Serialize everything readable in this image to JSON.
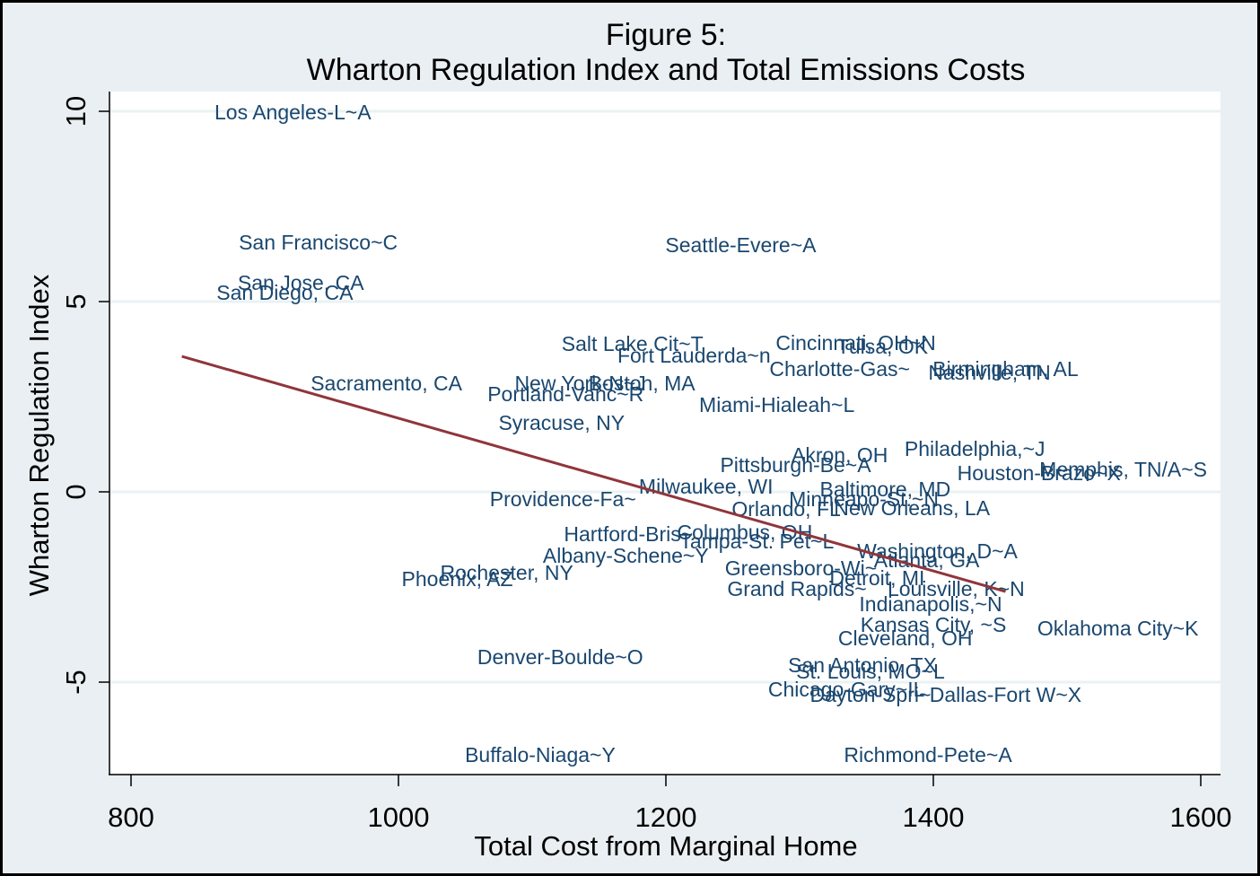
{
  "chart_data": {
    "type": "scatter",
    "title": "Figure 5:",
    "subtitle": "Wharton Regulation Index and Total Emissions Costs",
    "xlabel": "Total Cost from Marginal Home",
    "ylabel": "Wharton Regulation Index",
    "xlim": [
      784,
      1615
    ],
    "ylim": [
      -7.4,
      10.5
    ],
    "xticks": [
      800,
      1000,
      1200,
      1400,
      1600
    ],
    "xtick_labels": [
      "800",
      "1000",
      "1200",
      "1400",
      "1600"
    ],
    "yticks": [
      10,
      5,
      0,
      -5
    ],
    "ytick_labels": [
      "10",
      "5",
      "0",
      "-5"
    ],
    "grid": "horizontal",
    "legend": "none",
    "marker": "label-only",
    "label_color": "#1a476f",
    "fit_line": {
      "type": "linear",
      "color": "#90353b",
      "x": [
        838,
        1454
      ],
      "y": [
        3.56,
        -2.62
      ]
    },
    "points": [
      {
        "label": "Los Angeles-L~A",
        "x": 921,
        "y": 9.98
      },
      {
        "label": "San Francisco~C",
        "x": 940,
        "y": 6.56
      },
      {
        "label": "San Jose, CA",
        "x": 927,
        "y": 5.5
      },
      {
        "label": "San Diego, CA",
        "x": 915,
        "y": 5.24
      },
      {
        "label": "Seattle-Evere~A",
        "x": 1256,
        "y": 6.49
      },
      {
        "label": "Salt Lake Cit~T",
        "x": 1175,
        "y": 3.89
      },
      {
        "label": "Fort Lauderda~n",
        "x": 1221,
        "y": 3.58
      },
      {
        "label": "Cincinnati, OH~N",
        "x": 1342,
        "y": 3.92
      },
      {
        "label": "Tulsa, OK",
        "x": 1362,
        "y": 3.82
      },
      {
        "label": "Charlotte-Gas~",
        "x": 1330,
        "y": 3.23
      },
      {
        "label": "Birmingham, AL",
        "x": 1454,
        "y": 3.23
      },
      {
        "label": "Nashville, TN",
        "x": 1442,
        "y": 3.14
      },
      {
        "label": "Sacramento, CA",
        "x": 991,
        "y": 2.85
      },
      {
        "label": "New York-N~J",
        "x": 1136,
        "y": 2.85
      },
      {
        "label": "Boston, MA",
        "x": 1182,
        "y": 2.85
      },
      {
        "label": "Portland-Vanc~R",
        "x": 1125,
        "y": 2.57
      },
      {
        "label": "Miami-Hialeah~L",
        "x": 1283,
        "y": 2.29
      },
      {
        "label": "Syracuse, NY",
        "x": 1122,
        "y": 1.82
      },
      {
        "label": "Akron, OH",
        "x": 1330,
        "y": 0.97
      },
      {
        "label": "Philadelphia,~J",
        "x": 1431,
        "y": 1.13
      },
      {
        "label": "Pittsburgh-Be~A",
        "x": 1297,
        "y": 0.71
      },
      {
        "label": "Houston-Brazo~X",
        "x": 1479,
        "y": 0.5
      },
      {
        "label": "Memphis, TN/A~S",
        "x": 1542,
        "y": 0.59
      },
      {
        "label": "Milwaukee, WI",
        "x": 1230,
        "y": 0.14
      },
      {
        "label": "Baltimore, MD",
        "x": 1364,
        "y": 0.07
      },
      {
        "label": "Minneapo-St.~N",
        "x": 1348,
        "y": -0.19
      },
      {
        "label": "Providence-Fa~",
        "x": 1123,
        "y": -0.19
      },
      {
        "label": "Orlando, FL",
        "x": 1290,
        "y": -0.45
      },
      {
        "label": "New Orleans, LA",
        "x": 1384,
        "y": -0.42
      },
      {
        "label": "Hartford-Bris~",
        "x": 1172,
        "y": -1.11
      },
      {
        "label": "Columbus, OH",
        "x": 1259,
        "y": -1.06
      },
      {
        "label": "Tampa-St. Pet~L",
        "x": 1268,
        "y": -1.3
      },
      {
        "label": "Albany-Schene~Y",
        "x": 1170,
        "y": -1.67
      },
      {
        "label": "Washington, D~A",
        "x": 1403,
        "y": -1.56
      },
      {
        "label": "Atlanta, GA",
        "x": 1395,
        "y": -1.79
      },
      {
        "label": "Rochester, NY",
        "x": 1081,
        "y": -2.12
      },
      {
        "label": "Phoenix, AZ",
        "x": 1044,
        "y": -2.29
      },
      {
        "label": "Greensboro-Wi~",
        "x": 1301,
        "y": -2.0
      },
      {
        "label": "Detroit, MI",
        "x": 1358,
        "y": -2.26
      },
      {
        "label": "Grand Rapids~",
        "x": 1298,
        "y": -2.55
      },
      {
        "label": "Louisville, K~N",
        "x": 1417,
        "y": -2.55
      },
      {
        "label": "Indianapolis,~N",
        "x": 1398,
        "y": -2.95
      },
      {
        "label": "Kansas City, ~S",
        "x": 1400,
        "y": -3.49
      },
      {
        "label": "Oklahoma City~K",
        "x": 1538,
        "y": -3.58
      },
      {
        "label": "Cleveland, OH",
        "x": 1379,
        "y": -3.84
      },
      {
        "label": "Denver-Boulde~O",
        "x": 1121,
        "y": -4.34
      },
      {
        "label": "San Antonio, TX",
        "x": 1347,
        "y": -4.55
      },
      {
        "label": "St. Louis, MO~L",
        "x": 1353,
        "y": -4.72
      },
      {
        "label": "Chicago-Gary~IL",
        "x": 1335,
        "y": -5.19
      },
      {
        "label": "Dayton-Spri~",
        "x": 1353,
        "y": -5.33
      },
      {
        "label": "Dallas-Fort W~X",
        "x": 1454,
        "y": -5.33
      },
      {
        "label": "Buffalo-Niaga~Y",
        "x": 1106,
        "y": -6.91
      },
      {
        "label": "Richmond-Pete~A",
        "x": 1396,
        "y": -6.91
      }
    ]
  }
}
